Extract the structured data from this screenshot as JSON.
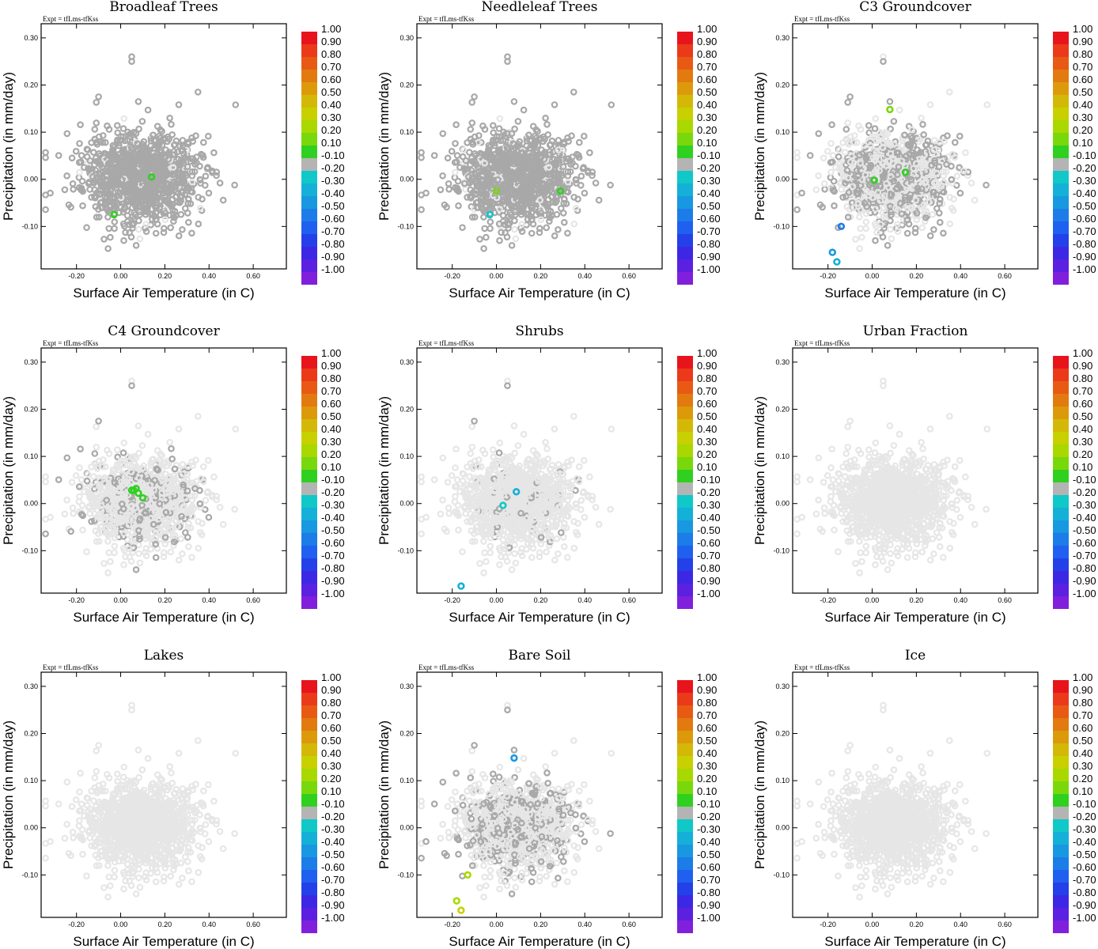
{
  "figure": {
    "experiment_label": "Expt = tfLms-tfKss",
    "xlabel": "Surface Air Temperature (in C)",
    "ylabel": "Precipitation (in mm/day)"
  },
  "axes": {
    "x_ticks": [
      -0.2,
      0.0,
      0.2,
      0.4,
      0.6
    ],
    "x_tick_labels": [
      "-0.20",
      "0.00",
      "0.20",
      "0.40",
      "0.60"
    ],
    "y_ticks": [
      -0.1,
      0.0,
      0.1,
      0.2,
      0.3
    ],
    "y_tick_labels": [
      "-0.10",
      "0.00",
      "0.10",
      "0.20",
      "0.30"
    ]
  },
  "colorbar": {
    "labels": [
      "1.00",
      "0.90",
      "0.80",
      "0.70",
      "0.60",
      "0.50",
      "0.40",
      "0.30",
      "0.20",
      "0.10",
      "-0.10",
      "-0.20",
      "-0.30",
      "-0.40",
      "-0.50",
      "-0.60",
      "-0.70",
      "-0.80",
      "-0.90",
      "-1.00"
    ],
    "colors": [
      "#e8141c",
      "#ea3a1a",
      "#e85a14",
      "#e27a10",
      "#dc9a0a",
      "#d4b808",
      "#c8d000",
      "#a8d800",
      "#78d80c",
      "#30d020",
      "#b4b4b4",
      "#10c8c8",
      "#14b0d8",
      "#1898e0",
      "#1c7ce8",
      "#2060f0",
      "#2440e8",
      "#3c28e4",
      "#5c20e0",
      "#8020dc"
    ]
  },
  "chart_data": [
    {
      "type": "scatter",
      "title": "Broadleaf Trees",
      "xlim": [
        -0.36,
        0.75
      ],
      "ylim": [
        -0.19,
        0.33
      ],
      "background_fraction": 0.95,
      "colored_points": [
        {
          "x": 0.14,
          "y": 0.005,
          "c": 0.1
        },
        {
          "x": -0.03,
          "y": -0.075,
          "c": 0.1
        }
      ]
    },
    {
      "type": "scatter",
      "title": "Needleleaf Trees",
      "xlim": [
        -0.36,
        0.75
      ],
      "ylim": [
        -0.19,
        0.33
      ],
      "background_fraction": 0.92,
      "colored_points": [
        {
          "x": 0.0,
          "y": -0.025,
          "c": 0.2
        },
        {
          "x": 0.29,
          "y": -0.025,
          "c": 0.1
        },
        {
          "x": -0.03,
          "y": -0.075,
          "c": -0.2
        }
      ]
    },
    {
      "type": "scatter",
      "title": "C3 Groundcover",
      "xlim": [
        -0.36,
        0.75
      ],
      "ylim": [
        -0.19,
        0.33
      ],
      "background_fraction": 0.45,
      "colored_points": [
        {
          "x": 0.08,
          "y": 0.148,
          "c": 0.2
        },
        {
          "x": 0.15,
          "y": 0.015,
          "c": 0.1
        },
        {
          "x": 0.01,
          "y": -0.002,
          "c": 0.1
        },
        {
          "x": -0.14,
          "y": -0.1,
          "c": -0.5
        },
        {
          "x": -0.18,
          "y": -0.155,
          "c": -0.4
        },
        {
          "x": -0.16,
          "y": -0.175,
          "c": -0.3
        }
      ]
    },
    {
      "type": "scatter",
      "title": "C4 Groundcover",
      "xlim": [
        -0.36,
        0.75
      ],
      "ylim": [
        -0.19,
        0.33
      ],
      "background_fraction": 0.2,
      "colored_points": [
        {
          "x": 0.06,
          "y": 0.028,
          "c": 0.1
        },
        {
          "x": 0.07,
          "y": 0.032,
          "c": 0.1
        },
        {
          "x": 0.08,
          "y": 0.022,
          "c": 0.1
        },
        {
          "x": 0.1,
          "y": 0.012,
          "c": 0.1
        },
        {
          "x": 0.05,
          "y": 0.028,
          "c": 0.1
        }
      ]
    },
    {
      "type": "scatter",
      "title": "Shrubs",
      "xlim": [
        -0.36,
        0.75
      ],
      "ylim": [
        -0.19,
        0.33
      ],
      "background_fraction": 0.05,
      "colored_points": [
        {
          "x": 0.09,
          "y": 0.025,
          "c": -0.3
        },
        {
          "x": 0.03,
          "y": -0.004,
          "c": -0.2
        },
        {
          "x": -0.16,
          "y": -0.175,
          "c": -0.3
        }
      ]
    },
    {
      "type": "scatter",
      "title": "Urban Fraction",
      "xlim": [
        -0.36,
        0.75
      ],
      "ylim": [
        -0.19,
        0.33
      ],
      "background_fraction": 0.0,
      "colored_points": []
    },
    {
      "type": "scatter",
      "title": "Lakes",
      "xlim": [
        -0.36,
        0.75
      ],
      "ylim": [
        -0.19,
        0.33
      ],
      "background_fraction": 0.0,
      "colored_points": []
    },
    {
      "type": "scatter",
      "title": "Bare Soil",
      "xlim": [
        -0.36,
        0.75
      ],
      "ylim": [
        -0.19,
        0.33
      ],
      "background_fraction": 0.3,
      "colored_points": [
        {
          "x": 0.08,
          "y": 0.148,
          "c": -0.4
        },
        {
          "x": -0.13,
          "y": -0.1,
          "c": 0.3
        },
        {
          "x": -0.18,
          "y": -0.155,
          "c": 0.3
        },
        {
          "x": -0.16,
          "y": -0.175,
          "c": 0.4
        }
      ]
    },
    {
      "type": "scatter",
      "title": "Ice",
      "xlim": [
        -0.36,
        0.75
      ],
      "ylim": [
        -0.19,
        0.33
      ],
      "background_fraction": 0.0,
      "colored_points": []
    }
  ]
}
